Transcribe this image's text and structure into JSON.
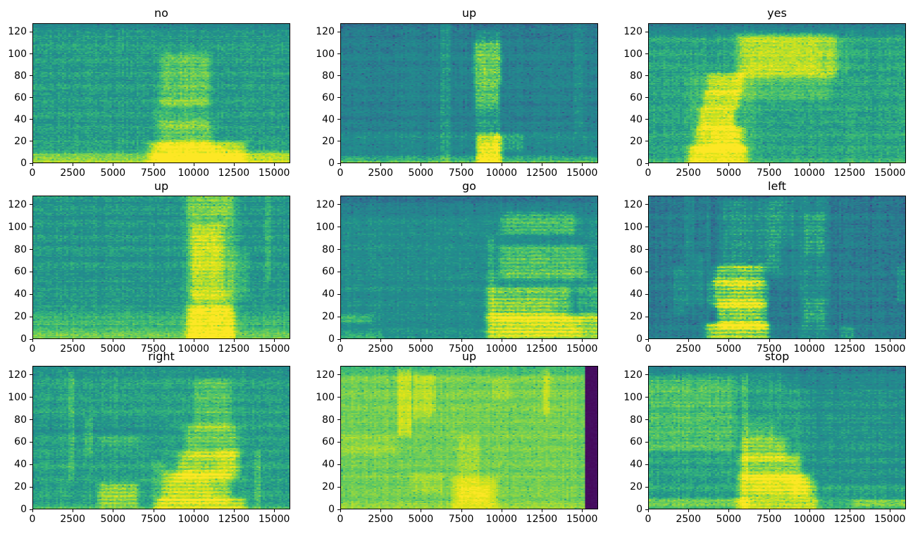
{
  "figure": {
    "background": "#ffffff",
    "text_color": "#000000",
    "layout": {
      "rows": 3,
      "cols": 3
    },
    "axes": {
      "x_range": [
        0,
        16000
      ],
      "y_range": [
        0,
        128
      ],
      "x_ticks": [
        0,
        2500,
        5000,
        7500,
        10000,
        12500,
        15000
      ],
      "x_tick_labels": [
        "0",
        "2500",
        "5000",
        "7500",
        "10000",
        "12500",
        "15000"
      ],
      "y_ticks": [
        0,
        20,
        40,
        60,
        80,
        100,
        120
      ],
      "y_tick_labels": [
        "0",
        "20",
        "40",
        "60",
        "80",
        "100",
        "120"
      ],
      "grid": false
    },
    "heatmap_grid": {
      "cols": 124,
      "rows": 129
    },
    "colormap": "viridis",
    "colormap_stops": [
      [
        0,
        68,
        1,
        84
      ],
      [
        0.1,
        72,
        40,
        120
      ],
      [
        0.2,
        62,
        74,
        137
      ],
      [
        0.3,
        49,
        104,
        142
      ],
      [
        0.4,
        38,
        130,
        142
      ],
      [
        0.5,
        33,
        145,
        140
      ],
      [
        0.6,
        53,
        183,
        121
      ],
      [
        0.7,
        109,
        205,
        89
      ],
      [
        0.8,
        180,
        222,
        44
      ],
      [
        0.9,
        223,
        227,
        24
      ],
      [
        1,
        253,
        231,
        37
      ]
    ]
  },
  "chart_data": [
    {
      "type": "heatmap",
      "title": "no",
      "x_range": [
        0,
        16000
      ],
      "y_range": [
        0,
        128
      ],
      "colormap": "viridis",
      "base_level": 0.53,
      "stripe": 0.15,
      "noise": {
        "cell": 0.06,
        "row": 0.025,
        "col": 0.02,
        "seed": 11
      },
      "profile": {
        "bottom_amp": 0.2,
        "bottom_tau": 6,
        "top_amp": -0.08,
        "top_start": 114
      },
      "regions": [
        [
          0,
          16000,
          0,
          7,
          0.1,
          0
        ],
        [
          7600,
          12800,
          0,
          16,
          0.28,
          0
        ],
        [
          8100,
          11600,
          1,
          13,
          0.14,
          0
        ],
        [
          8200,
          10800,
          16,
          36,
          0.16,
          0
        ],
        [
          8000,
          10600,
          36,
          55,
          0.07,
          0
        ],
        [
          8300,
          10700,
          55,
          98,
          0.15,
          0
        ],
        [
          12600,
          16000,
          0,
          9,
          0.1,
          0
        ]
      ]
    },
    {
      "type": "heatmap",
      "title": "up",
      "x_range": [
        0,
        16000
      ],
      "y_range": [
        0,
        128
      ],
      "colormap": "viridis",
      "base_level": 0.41,
      "stripe": 0.15,
      "noise": {
        "cell": 0.06,
        "row": 0.02,
        "col": 0.025,
        "seed": 22
      },
      "profile": {
        "bottom_amp": 0.16,
        "bottom_tau": 4,
        "top_amp": -0.04,
        "top_start": 100
      },
      "regions": [
        [
          0,
          16000,
          0,
          5,
          0.12,
          0
        ],
        [
          0,
          16000,
          14,
          26,
          0.05,
          0
        ],
        [
          6250,
          6800,
          4,
          126,
          0.09,
          0
        ],
        [
          8550,
          9750,
          0,
          118,
          0.13,
          0
        ],
        [
          8650,
          9900,
          0,
          22,
          0.26,
          0
        ],
        [
          8800,
          9700,
          2,
          15,
          0.14,
          0
        ],
        [
          9700,
          11200,
          12,
          24,
          0.1,
          0
        ],
        [
          8500,
          9650,
          53,
          70,
          0.13,
          0
        ],
        [
          8450,
          9850,
          76,
          108,
          0.16,
          0
        ],
        [
          14650,
          15000,
          30,
          128,
          0.07,
          0
        ]
      ]
    },
    {
      "type": "heatmap",
      "title": "yes",
      "x_range": [
        0,
        16000
      ],
      "y_range": [
        0,
        128
      ],
      "colormap": "viridis",
      "base_level": 0.55,
      "stripe": 0.15,
      "noise": {
        "cell": 0.06,
        "row": 0.02,
        "col": 0.02,
        "seed": 33
      },
      "profile": {
        "bottom_amp": 0.06,
        "bottom_tau": 5,
        "top_amp": -0.2,
        "top_start": 116
      },
      "regions": [
        [
          2800,
          6200,
          0,
          80,
          0.06,
          0
        ],
        [
          2900,
          5700,
          0,
          13,
          0.34,
          0
        ],
        [
          3300,
          5600,
          13,
          30,
          0.26,
          0
        ],
        [
          4100,
          5500,
          15,
          29,
          0.1,
          0
        ],
        [
          3400,
          5100,
          33,
          48,
          0.28,
          0
        ],
        [
          3700,
          5400,
          52,
          64,
          0.24,
          0
        ],
        [
          3900,
          5600,
          66,
          80,
          0.22,
          0
        ],
        [
          5800,
          11000,
          60,
          82,
          0.09,
          0
        ],
        [
          5900,
          11300,
          82,
          116,
          0.2,
          0
        ],
        [
          6300,
          10300,
          88,
          112,
          0.08,
          0
        ],
        [
          11300,
          12300,
          85,
          110,
          0.05,
          0
        ]
      ]
    },
    {
      "type": "heatmap",
      "title": "up",
      "x_range": [
        0,
        16000
      ],
      "y_range": [
        0,
        128
      ],
      "colormap": "viridis",
      "base_level": 0.51,
      "stripe": 0.2,
      "noise": {
        "cell": 0.055,
        "row": 0.03,
        "col": 0.02,
        "seed": 44
      },
      "profile": {
        "bottom_amp": 0.14,
        "bottom_tau": 12,
        "top_amp": 0,
        "top_start": 127
      },
      "regions": [
        [
          0,
          16000,
          0,
          20,
          0.06,
          0
        ],
        [
          9900,
          12300,
          0,
          128,
          0.13,
          0
        ],
        [
          10000,
          12200,
          0,
          25,
          0.26,
          0
        ],
        [
          10200,
          12000,
          25,
          40,
          0.1,
          0
        ],
        [
          10100,
          11700,
          38,
          100,
          0.16,
          0
        ],
        [
          10100,
          11500,
          60,
          95,
          0.06,
          0
        ],
        [
          10000,
          12100,
          110,
          125,
          0.08,
          0
        ],
        [
          12300,
          13400,
          38,
          75,
          0.07,
          0
        ],
        [
          14550,
          14850,
          55,
          128,
          0.08,
          0
        ]
      ]
    },
    {
      "type": "heatmap",
      "title": "go",
      "x_range": [
        0,
        16000
      ],
      "y_range": [
        0,
        128
      ],
      "colormap": "viridis",
      "base_level": 0.475,
      "stripe": 0.3,
      "noise": {
        "cell": 0.055,
        "row": 0.02,
        "col": 0.02,
        "seed": 55
      },
      "profile": {
        "bottom_amp": 0.05,
        "bottom_tau": 6,
        "top_amp": -0.12,
        "top_start": 105
      },
      "regions": [
        [
          0,
          1700,
          14,
          20,
          0.12,
          0
        ],
        [
          0,
          2300,
          0,
          4,
          0.09,
          0
        ],
        [
          9250,
          9550,
          0,
          88,
          0.1,
          0
        ],
        [
          9500,
          15900,
          0,
          18,
          0.26,
          0
        ],
        [
          10100,
          14700,
          3,
          16,
          0.14,
          0
        ],
        [
          9500,
          13900,
          19,
          42,
          0.18,
          0
        ],
        [
          9700,
          13000,
          22,
          34,
          0.08,
          0
        ],
        [
          9500,
          16000,
          42,
          58,
          0.05,
          0
        ],
        [
          10300,
          14900,
          58,
          80,
          0.16,
          0
        ],
        [
          10400,
          14300,
          97,
          112,
          0.15,
          0
        ],
        [
          14900,
          16000,
          18,
          42,
          0.08,
          0
        ]
      ]
    },
    {
      "type": "heatmap",
      "title": "left",
      "x_range": [
        0,
        16000
      ],
      "y_range": [
        0,
        128
      ],
      "colormap": "viridis",
      "base_level": 0.375,
      "stripe": 0.3,
      "noise": {
        "cell": 0.06,
        "row": 0.02,
        "col": 0.03,
        "seed": 66
      },
      "profile": {
        "bottom_amp": 0.05,
        "bottom_tau": 6,
        "top_amp": -0.03,
        "top_start": 112
      },
      "regions": [
        [
          4000,
          7100,
          0,
          12,
          0.4,
          0
        ],
        [
          4650,
          6950,
          12,
          30,
          0.34,
          0
        ],
        [
          4300,
          6950,
          30,
          50,
          0.3,
          0
        ],
        [
          5100,
          6600,
          32,
          48,
          0.08,
          0
        ],
        [
          4400,
          6850,
          50,
          64,
          0.24,
          0
        ],
        [
          4900,
          7700,
          64,
          122,
          0.12,
          0
        ],
        [
          7700,
          9200,
          55,
          128,
          0.06,
          0
        ],
        [
          1600,
          2150,
          25,
          62,
          0.09,
          0
        ],
        [
          2300,
          2750,
          30,
          126,
          0.07,
          0
        ],
        [
          2950,
          3350,
          33,
          72,
          0.08,
          0
        ],
        [
          3600,
          3850,
          30,
          120,
          0.05,
          0
        ],
        [
          9650,
          11050,
          0,
          128,
          0.09,
          0
        ],
        [
          9850,
          10850,
          16,
          32,
          0.09,
          0
        ],
        [
          9850,
          10850,
          78,
          110,
          0.08,
          0
        ],
        [
          12050,
          12750,
          0,
          9,
          0.13,
          0
        ],
        [
          15550,
          16000,
          36,
          64,
          0.1,
          0
        ],
        [
          8200,
          8900,
          92,
          126,
          0.06,
          0
        ]
      ]
    },
    {
      "type": "heatmap",
      "title": "right",
      "x_range": [
        0,
        16000
      ],
      "y_range": [
        0,
        128
      ],
      "colormap": "viridis",
      "base_level": 0.545,
      "stripe": 0.3,
      "noise": {
        "cell": 0.055,
        "row": 0.02,
        "col": 0.02,
        "seed": 77
      },
      "profile": {
        "bottom_amp": 0.1,
        "bottom_tau": 3,
        "top_amp": -0.07,
        "top_start": 116
      },
      "regions": [
        [
          4350,
          6250,
          4,
          20,
          0.2,
          0
        ],
        [
          4300,
          6300,
          56,
          64,
          0.06,
          0
        ],
        [
          8100,
          12800,
          0,
          8,
          0.26,
          0
        ],
        [
          8500,
          11900,
          8,
          30,
          0.22,
          0
        ],
        [
          8800,
          10900,
          14,
          30,
          0.1,
          0
        ],
        [
          9400,
          12300,
          30,
          48,
          0.2,
          0
        ],
        [
          9900,
          12400,
          48,
          72,
          0.15,
          0
        ],
        [
          10300,
          12100,
          74,
          114,
          0.11,
          0
        ],
        [
          11700,
          12800,
          28,
          50,
          0.08,
          0
        ],
        [
          7500,
          8200,
          0,
          40,
          0.07,
          0
        ],
        [
          2280,
          2550,
          30,
          120,
          0.09,
          0
        ],
        [
          13850,
          14150,
          0,
          48,
          0.09,
          0
        ],
        [
          3300,
          3700,
          52,
          78,
          0.07,
          0
        ],
        [
          0,
          8200,
          70,
          78,
          -0.05,
          0
        ]
      ]
    },
    {
      "type": "heatmap",
      "title": "up",
      "x_range": [
        0,
        16000
      ],
      "y_range": [
        0,
        128
      ],
      "colormap": "viridis",
      "base_level": 0.71,
      "stripe": 0.1,
      "noise": {
        "cell": 0.045,
        "row": 0.02,
        "col": 0.02,
        "seed": 88
      },
      "profile": {
        "bottom_amp": 0.06,
        "bottom_tau": 5,
        "top_amp": -0.1,
        "top_start": 118
      },
      "regions": [
        [
          15280,
          16000,
          0,
          128,
          0.03,
          1
        ],
        [
          3650,
          4300,
          70,
          122,
          0.14,
          0
        ],
        [
          4600,
          5000,
          85,
          120,
          0.1,
          0
        ],
        [
          5150,
          5550,
          85,
          118,
          0.1,
          0
        ],
        [
          5600,
          5850,
          88,
          118,
          0.08,
          0
        ],
        [
          7300,
          9400,
          2,
          24,
          0.16,
          0
        ],
        [
          7600,
          9000,
          7,
          18,
          0.09,
          0
        ],
        [
          7500,
          8500,
          24,
          62,
          0.07,
          0
        ],
        [
          4600,
          6200,
          16,
          30,
          0.06,
          0
        ],
        [
          12650,
          13000,
          88,
          122,
          0.11,
          0
        ],
        [
          0,
          3100,
          50,
          63,
          0.05,
          0
        ],
        [
          9500,
          10500,
          100,
          115,
          0.04,
          0
        ]
      ]
    },
    {
      "type": "heatmap",
      "title": "stop",
      "x_range": [
        0,
        16000
      ],
      "y_range": [
        0,
        128
      ],
      "colormap": "viridis",
      "base_level": 0.55,
      "stripe": 0.25,
      "noise": {
        "cell": 0.055,
        "row": 0.02,
        "col": 0.02,
        "seed": 99
      },
      "profile": {
        "bottom_amp": 0.07,
        "bottom_tau": 4,
        "top_amp": -0.13,
        "top_start": 112
      },
      "regions": [
        [
          200,
          5000,
          55,
          116,
          0.1,
          0
        ],
        [
          0,
          6000,
          2,
          8,
          0.12,
          0
        ],
        [
          5850,
          6150,
          0,
          118,
          0.07,
          0
        ],
        [
          5900,
          10200,
          0,
          8,
          0.24,
          0
        ],
        [
          6050,
          9700,
          12,
          28,
          0.28,
          0
        ],
        [
          6700,
          9200,
          14,
          26,
          0.08,
          0
        ],
        [
          6100,
          9100,
          28,
          46,
          0.2,
          0
        ],
        [
          6150,
          8300,
          46,
          62,
          0.16,
          0
        ],
        [
          6200,
          7700,
          62,
          76,
          0.08,
          0
        ],
        [
          9100,
          10400,
          12,
          24,
          0.12,
          0
        ],
        [
          13000,
          16000,
          2,
          7,
          0.13,
          0
        ],
        [
          10200,
          16000,
          24,
          110,
          -0.05,
          0
        ],
        [
          9000,
          16000,
          110,
          128,
          -0.06,
          0
        ]
      ]
    }
  ]
}
